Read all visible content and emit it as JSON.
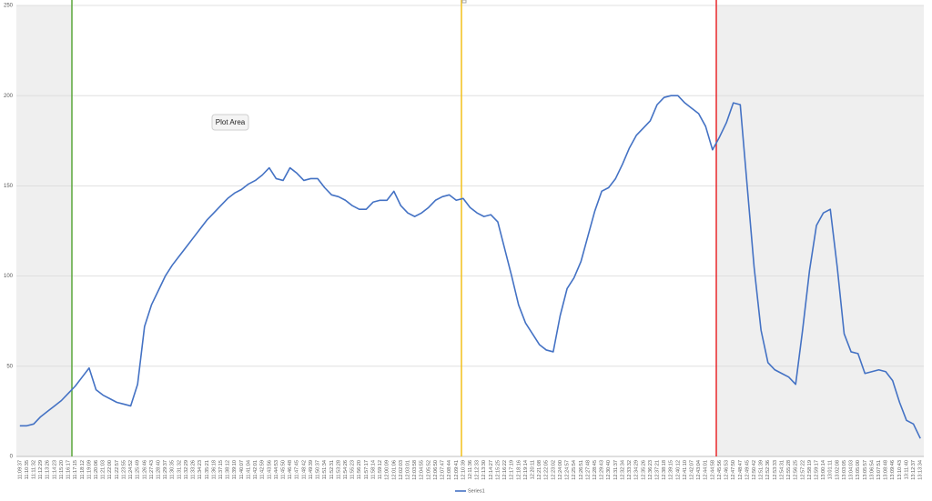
{
  "chart_data": {
    "type": "line",
    "categories": [
      "11:09:37",
      "11:10:35",
      "11:11:32",
      "11:12:29",
      "11:13:26",
      "11:14:23",
      "11:15:20",
      "11:16:17",
      "11:17:15",
      "11:18:12",
      "11:19:09",
      "11:20:06",
      "11:21:03",
      "11:22:00",
      "11:22:57",
      "11:23:55",
      "11:24:52",
      "11:25:49",
      "11:26:46",
      "11:27:43",
      "11:28:40",
      "11:29:37",
      "11:30:35",
      "11:31:32",
      "11:32:29",
      "11:33:26",
      "11:34:23",
      "11:35:21",
      "11:36:18",
      "11:37:15",
      "11:38:12",
      "11:39:10",
      "11:40:07",
      "11:41:04",
      "11:42:01",
      "11:42:59",
      "11:43:56",
      "11:44:53",
      "11:45:50",
      "11:46:48",
      "11:47:45",
      "11:48:42",
      "11:49:39",
      "11:50:37",
      "11:51:34",
      "11:52:31",
      "11:53:28",
      "11:54:26",
      "11:55:23",
      "11:56:20",
      "11:57:17",
      "11:58:14",
      "11:59:12",
      "12:00:09",
      "12:01:06",
      "12:02:03",
      "12:03:01",
      "12:03:58",
      "12:04:55",
      "12:05:52",
      "12:06:50",
      "12:07:47",
      "12:08:44",
      "12:09:41",
      "12:10:39",
      "12:11:36",
      "12:12:33",
      "12:13:30",
      "12:14:27",
      "12:15:25",
      "12:16:22",
      "12:17:19",
      "12:18:16",
      "12:19:14",
      "12:20:11",
      "12:21:08",
      "12:22:05",
      "12:23:02",
      "12:24:00",
      "12:24:57",
      "12:25:54",
      "12:26:51",
      "12:27:48",
      "12:28:45",
      "12:29:43",
      "12:30:40",
      "12:31:37",
      "12:32:34",
      "12:33:32",
      "12:34:29",
      "12:35:26",
      "12:36:23",
      "12:37:21",
      "12:38:18",
      "12:39:15",
      "12:40:12",
      "12:41:10",
      "12:42:07",
      "12:43:04",
      "12:44:01",
      "12:44:58",
      "12:45:56",
      "12:46:53",
      "12:47:50",
      "12:48:47",
      "12:49:45",
      "12:50:42",
      "12:51:39",
      "12:52:36",
      "12:53:33",
      "12:54:31",
      "12:55:28",
      "12:56:25",
      "12:57:22",
      "12:58:19",
      "12:59:17",
      "13:00:14",
      "13:01:11",
      "13:02:08",
      "13:03:05",
      "13:04:03",
      "13:05:00",
      "13:05:57",
      "13:06:54",
      "13:07:51",
      "13:08:48",
      "13:09:46",
      "13:10:43",
      "13:11:40",
      "13:12:37",
      "13:13:34"
    ],
    "series": [
      {
        "name": "Series1",
        "color": "#4472c4",
        "values": [
          17,
          17,
          18,
          22,
          25,
          28,
          31,
          35,
          39,
          44,
          49,
          37,
          34,
          32,
          30,
          29,
          28,
          40,
          72,
          84,
          92,
          100,
          106,
          111,
          116,
          121,
          126,
          131,
          135,
          139,
          143,
          146,
          148,
          151,
          153,
          156,
          160,
          154,
          153,
          160,
          157,
          153,
          154,
          154,
          149,
          145,
          144,
          142,
          139,
          137,
          137,
          141,
          142,
          142,
          147,
          139,
          135,
          133,
          135,
          138,
          142,
          144,
          145,
          142,
          143,
          138,
          135,
          133,
          134,
          130,
          115,
          100,
          84,
          74,
          68,
          62,
          59,
          58,
          78,
          93,
          99,
          108,
          122,
          136,
          147,
          149,
          154,
          162,
          171,
          178,
          182,
          186,
          195,
          199,
          200,
          200,
          196,
          193,
          190,
          183,
          170,
          177,
          185,
          196,
          195,
          150,
          105,
          70,
          52,
          48,
          46,
          44,
          40,
          70,
          103,
          128,
          135,
          137,
          105,
          68,
          58,
          57,
          46,
          47,
          48,
          47,
          42,
          30,
          20,
          18,
          10
        ]
      }
    ],
    "ylim": [
      0,
      250
    ],
    "yticks": [
      0,
      50,
      100,
      150,
      200,
      250
    ],
    "grid": true,
    "legend": "bottom",
    "tooltip": "Plot Area"
  }
}
